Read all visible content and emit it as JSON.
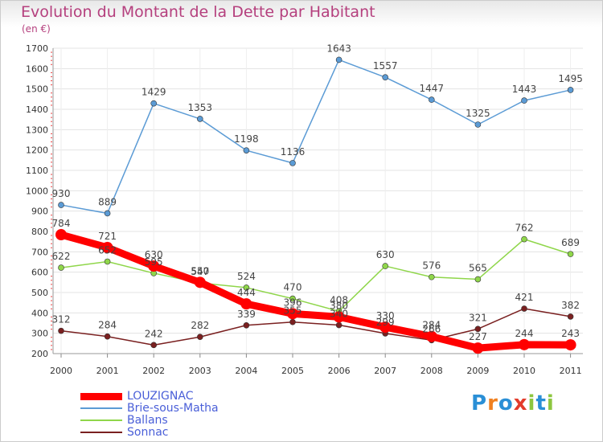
{
  "chart_data": {
    "type": "line",
    "title": "Evolution du Montant de la Dette par Habitant",
    "subtitle": "(en €)",
    "xlabel": "",
    "ylabel": "",
    "x": [
      "2000",
      "2001",
      "2002",
      "2003",
      "2004",
      "2005",
      "2006",
      "2007",
      "2008",
      "2009",
      "2010",
      "2011"
    ],
    "yticks": [
      200,
      300,
      400,
      500,
      600,
      700,
      800,
      900,
      1000,
      1100,
      1200,
      1300,
      1400,
      1500,
      1600,
      1700
    ],
    "ylim": [
      200,
      1700
    ],
    "grid": true,
    "legend_position": "bottom-left",
    "series": [
      {
        "name": "LOUZIGNAC",
        "color": "#ff0000",
        "values": [
          784,
          721,
          630,
          550,
          444,
          396,
          380,
          330,
          284,
          227,
          244,
          243
        ]
      },
      {
        "name": "Brie-sous-Matha",
        "color": "#5b9bd5",
        "values": [
          930,
          889,
          1429,
          1353,
          1198,
          1136,
          1643,
          1557,
          1447,
          1325,
          1443,
          1495
        ]
      },
      {
        "name": "Ballans",
        "color": "#8fd64a",
        "values": [
          622,
          652,
          595,
          547,
          524,
          470,
          408,
          630,
          576,
          565,
          762,
          689
        ]
      },
      {
        "name": "Sonnac",
        "color": "#7a2020",
        "values": [
          312,
          284,
          242,
          282,
          339,
          355,
          340,
          299,
          266,
          321,
          421,
          382
        ]
      }
    ]
  },
  "brand": {
    "text": "Proxiti",
    "letters": [
      "P",
      "r",
      "o",
      "x",
      "i",
      "t",
      "i"
    ],
    "colors": [
      "#2a8fd6",
      "#f08020",
      "#2a8fd6",
      "#e33b2b",
      "#8dc63f",
      "#2a8fd6",
      "#8dc63f"
    ]
  }
}
